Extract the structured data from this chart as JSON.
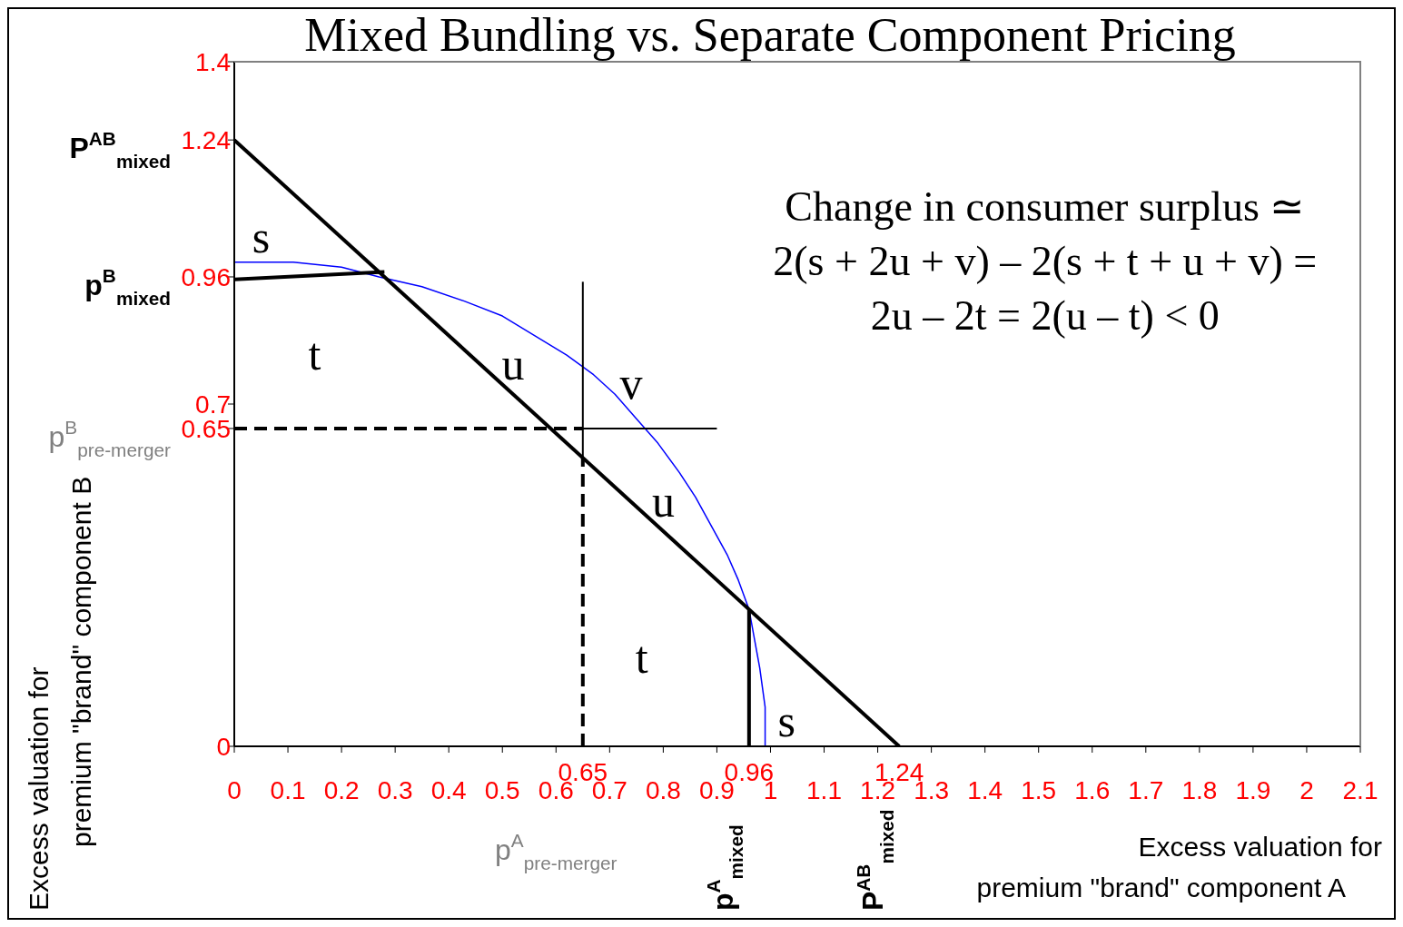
{
  "chart_data": {
    "type": "line",
    "title": "Mixed Bundling vs. Separate Component Pricing",
    "xlabel": "Excess valuation for premium \"brand\" component A",
    "ylabel": "Excess valuation for premium \"brand\" component B",
    "xlim": [
      0,
      2.1
    ],
    "ylim": [
      0,
      1.4
    ],
    "xticks": [
      0,
      0.1,
      0.2,
      0.3,
      0.4,
      0.5,
      0.6,
      0.7,
      0.8,
      0.9,
      1,
      1.1,
      1.2,
      1.3,
      1.4,
      1.5,
      1.6,
      1.7,
      1.8,
      1.9,
      2,
      2.1
    ],
    "yticks": [
      0,
      0.65,
      0.7,
      0.96,
      1.24,
      1.4
    ],
    "marker": "none",
    "series": [
      {
        "color": "#0000ff",
        "line_style": "solid",
        "x": [
          0,
          0.05,
          0.11,
          0.2,
          0.27,
          0.35,
          0.43,
          0.5,
          0.56,
          0.62,
          0.67,
          0.71,
          0.75,
          0.79,
          0.83,
          0.86,
          0.89,
          0.92,
          0.94,
          0.96,
          0.97,
          0.98,
          0.99,
          0.99
        ],
        "values": [
          0.99,
          0.99,
          0.99,
          0.98,
          0.96,
          0.94,
          0.91,
          0.88,
          0.84,
          0.8,
          0.76,
          0.72,
          0.67,
          0.62,
          0.56,
          0.51,
          0.45,
          0.39,
          0.34,
          0.28,
          0.22,
          0.16,
          0.08,
          0
        ]
      },
      {
        "color": "#000000",
        "line_style": "solid",
        "x": [
          0,
          1.24
        ],
        "values": [
          1.24,
          0
        ]
      },
      {
        "color": "#000000",
        "line_style": "solid",
        "x": [
          0,
          0.28
        ],
        "values": [
          0.955,
          0.97
        ]
      },
      {
        "color": "#000000",
        "line_style": "solid",
        "x": [
          0.96,
          0.96
        ],
        "values": [
          0,
          0.28
        ]
      },
      {
        "color": "#000000",
        "line_style": "dashed",
        "x": [
          0,
          0.65
        ],
        "values": [
          0.65,
          0.65
        ]
      },
      {
        "color": "#000000",
        "line_style": "dashed",
        "x": [
          0.65,
          0.65
        ],
        "values": [
          0,
          0.59
        ]
      },
      {
        "color": "#000000",
        "line_style": "solid",
        "x": [
          0.65,
          0.9
        ],
        "values": [
          0.65,
          0.65
        ]
      },
      {
        "color": "#000000",
        "line_style": "solid",
        "x": [
          0.65,
          0.65
        ],
        "values": [
          0.59,
          0.95
        ]
      }
    ],
    "annotations": [
      "Change in consumer surplus ≃",
      "2(s + 2u + v) – 2(s + t + u + v) =",
      "2u – 2t = 2(u – t) < 0",
      "P$^{AB}$$_{mixed}$",
      "p$^{B}$$_{mixed}$",
      "p$^{B}$$_{pre-merger}$",
      "p$^{A}$$_{pre-merger}$",
      "p$^{A}$$_{mixed}$",
      "P$^{AB}$$_{mixed}$",
      "s",
      "t",
      "u",
      "v",
      "u",
      "t",
      "s",
      {
        "text": "0.65",
        "x": 0.65,
        "y": 0
      },
      {
        "text": "0.96",
        "x": 0.96,
        "y": 0
      },
      {
        "text": "1.24",
        "x": 1.24,
        "y": 0
      }
    ]
  }
}
